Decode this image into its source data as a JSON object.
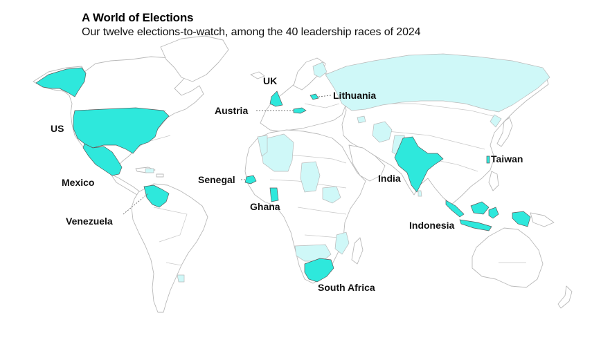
{
  "header": {
    "title": "A World of Elections",
    "subtitle": "Our twelve elections-to-watch, among the 40 leadership races of 2024"
  },
  "colors": {
    "watch": "#2ee8dc",
    "race": "#cff8f8",
    "land": "#ffffff",
    "outline": "#b9b9b9"
  },
  "labels": {
    "us": "US",
    "mexico": "Mexico",
    "venezuela": "Venezuela",
    "uk": "UK",
    "austria": "Austria",
    "lithuania": "Lithuania",
    "senegal": "Senegal",
    "ghana": "Ghana",
    "south_africa": "South Africa",
    "india": "India",
    "indonesia": "Indonesia",
    "taiwan": "Taiwan"
  }
}
